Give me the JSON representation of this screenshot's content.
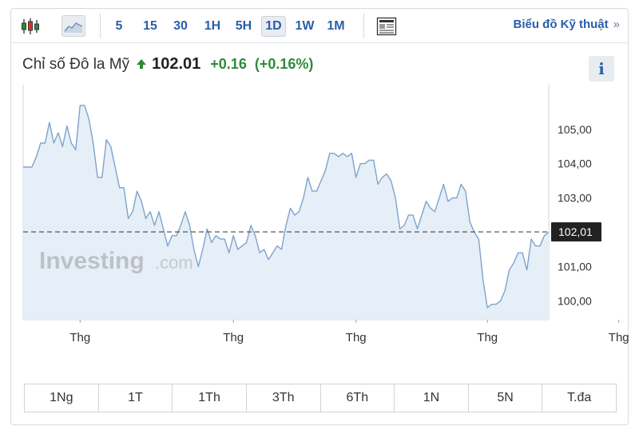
{
  "toolbar": {
    "chart_style_icons": [
      "candlestick-icon",
      "area-chart-icon"
    ],
    "timeframes": [
      {
        "label": "5",
        "active": false
      },
      {
        "label": "15",
        "active": false
      },
      {
        "label": "30",
        "active": false
      },
      {
        "label": "1H",
        "active": false
      },
      {
        "label": "5H",
        "active": false
      },
      {
        "label": "1D",
        "active": true
      },
      {
        "label": "1W",
        "active": false
      },
      {
        "label": "1M",
        "active": false
      }
    ],
    "news_icon": "news-icon",
    "tech_link": "Biểu đồ Kỹ thuật",
    "tech_chevron": "»"
  },
  "header": {
    "title": "Chỉ số Đô la Mỹ",
    "price": "102.01",
    "change": "+0.16",
    "change_pct": "(+0.16%)",
    "direction": "up",
    "info_label": "i"
  },
  "colors": {
    "accent": "#2a5ea8",
    "up": "#2e8b3a",
    "line": "#7fa3cc",
    "fill": "#e6eef7",
    "price_label_bg": "#222222"
  },
  "watermark": {
    "main": "Investing",
    "suffix": ".com"
  },
  "chart_data": {
    "type": "area",
    "title": "",
    "xlabel": "",
    "ylabel": "",
    "ylim": [
      99.45,
      106.3
    ],
    "y_ticks": [
      "105,00",
      "104,00",
      "103,00",
      "102,00",
      "101,00",
      "100,00"
    ],
    "y_tick_values": [
      105,
      104,
      103,
      102,
      101,
      100
    ],
    "x_ticks": [
      {
        "label": "Thg",
        "index": 13
      },
      {
        "label": "Thg",
        "index": 48
      },
      {
        "label": "Thg",
        "index": 76
      },
      {
        "label": "Thg",
        "index": 106
      },
      {
        "label": "Thg",
        "index": 136
      },
      {
        "label": "Th",
        "index": 165
      }
    ],
    "current_value": 102.01,
    "current_label": "102,01",
    "series": [
      {
        "values": [
          103.9,
          103.9,
          103.9,
          104.2,
          104.6,
          104.6,
          105.2,
          104.6,
          104.9,
          104.5,
          105.1,
          104.6,
          104.4,
          105.7,
          105.7,
          105.3,
          104.6,
          103.6,
          103.6,
          104.7,
          104.5,
          103.9,
          103.3,
          103.3,
          102.4,
          102.6,
          103.2,
          102.9,
          102.4,
          102.6,
          102.2,
          102.6,
          102.1,
          101.6,
          101.9,
          101.9,
          102.2,
          102.6,
          102.2,
          101.5,
          101.0,
          101.5,
          102.1,
          101.7,
          101.9,
          101.8,
          101.8,
          101.4,
          101.9,
          101.5,
          101.6,
          101.7,
          102.2,
          101.9,
          101.4,
          101.5,
          101.2,
          101.4,
          101.6,
          101.5,
          102.2,
          102.7,
          102.5,
          102.6,
          103.0,
          103.6,
          103.2,
          103.2,
          103.5,
          103.8,
          104.3,
          104.3,
          104.2,
          104.3,
          104.2,
          104.3,
          103.6,
          104.0,
          104.0,
          104.1,
          104.1,
          103.4,
          103.6,
          103.7,
          103.5,
          103.0,
          102.1,
          102.2,
          102.5,
          102.5,
          102.1,
          102.5,
          102.9,
          102.7,
          102.6,
          103.0,
          103.4,
          102.9,
          103.0,
          103.0,
          103.4,
          103.2,
          102.3,
          102.0,
          101.8,
          100.6,
          99.8,
          99.9,
          99.9,
          100.0,
          100.3,
          100.9,
          101.1,
          101.4,
          101.4,
          100.9,
          101.8,
          101.6,
          101.6,
          101.9,
          102.0
        ]
      }
    ]
  },
  "ranges": [
    "1Ng",
    "1T",
    "1Th",
    "3Th",
    "6Th",
    "1N",
    "5N",
    "T.đa"
  ]
}
